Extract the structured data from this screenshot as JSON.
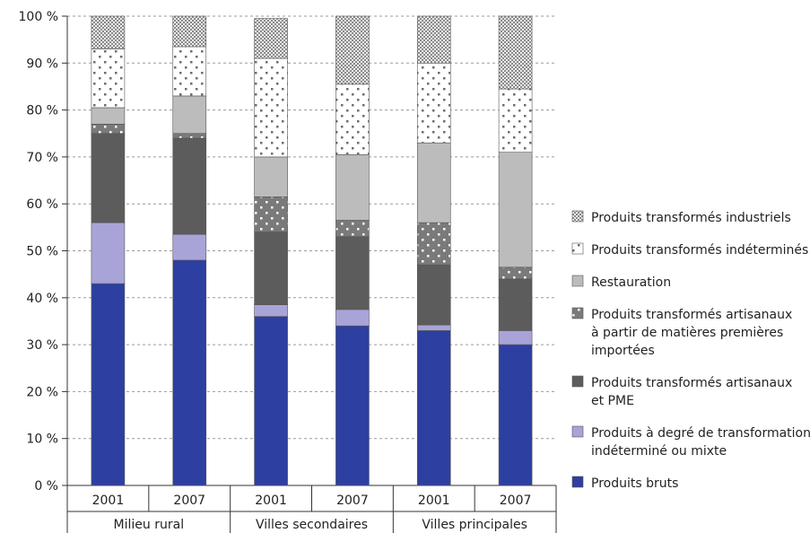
{
  "chart_data": {
    "type": "bar",
    "stacked": true,
    "percent": true,
    "ylim": [
      0,
      100
    ],
    "yticks": [
      "0 %",
      "10 %",
      "20 %",
      "30 %",
      "40 %",
      "50 %",
      "60 %",
      "70 %",
      "80 %",
      "90 %",
      "100 %"
    ],
    "categories": [
      "2001",
      "2007",
      "2001",
      "2007",
      "2001",
      "2007"
    ],
    "groups": [
      {
        "label": "Milieu rural",
        "span": 2
      },
      {
        "label": "Villes secondaires",
        "span": 2
      },
      {
        "label": "Villes principales",
        "span": 2
      }
    ],
    "legend_position": "right",
    "series": [
      {
        "name": "Produits bruts",
        "color": "#2d3fa0",
        "pattern": "solid",
        "values": [
          43,
          48,
          36,
          34,
          33,
          30
        ]
      },
      {
        "name": "Produits à degré de transformation indéterminé ou mixte",
        "color": "#a9a4d8",
        "pattern": "solid",
        "values": [
          13,
          5.5,
          2.5,
          3.5,
          1.2,
          3
        ]
      },
      {
        "name": "Produits transformés artisanaux et PME",
        "color": "#5c5c5c",
        "pattern": "solid",
        "values": [
          19,
          20.5,
          15.5,
          15.5,
          12.8,
          11
        ]
      },
      {
        "name": "Produits transformés artisanaux à partir de matières premières importées",
        "color": "#7a7a7a",
        "pattern": "dotted-dark",
        "values": [
          2,
          1,
          7.5,
          3.5,
          9,
          2.5
        ]
      },
      {
        "name": "Restauration",
        "color": "#bcbcbd",
        "pattern": "solid",
        "values": [
          3.5,
          8,
          8.5,
          14,
          17,
          24.5
        ]
      },
      {
        "name": "Produits transformés indéterminés",
        "color": "#ffffff",
        "pattern": "dotted-light",
        "values": [
          12.5,
          10.5,
          21,
          15,
          17,
          13.5
        ]
      },
      {
        "name": "Produits transformés industriels",
        "color": "#a6a6a6",
        "pattern": "checker",
        "values": [
          7,
          6.5,
          8.5,
          14.5,
          10,
          15.5
        ]
      }
    ],
    "legend": [
      {
        "text": [
          "Produits transformés industriels"
        ],
        "series": 6
      },
      {
        "text": [
          "Produits transformés indéterminés"
        ],
        "series": 5
      },
      {
        "text": [
          "Restauration"
        ],
        "series": 4
      },
      {
        "text": [
          "Produits transformés artisanaux",
          "à partir de matières premières",
          "importées"
        ],
        "series": 3
      },
      {
        "text": [
          "Produits transformés artisanaux",
          "et PME"
        ],
        "series": 2
      },
      {
        "text": [
          "Produits à degré de transformation",
          "indéterminé ou mixte"
        ],
        "series": 1
      },
      {
        "text": [
          "Produits bruts"
        ],
        "series": 0
      }
    ]
  }
}
